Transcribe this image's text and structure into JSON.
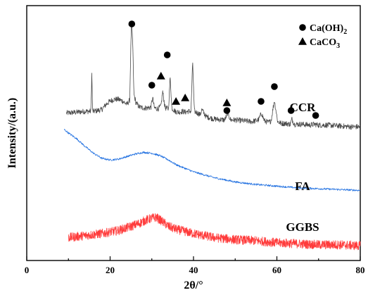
{
  "chart_data": {
    "type": "line",
    "xlabel": "2θ/°",
    "ylabel": "Intensity/(a.u.)",
    "xlim": [
      0,
      80
    ],
    "xticks": [
      0,
      20,
      40,
      60,
      80
    ],
    "yticks_shown": false,
    "legend": {
      "placement": "top-right",
      "entries": [
        {
          "marker": "circle",
          "label": "Ca(OH)",
          "sub": "2"
        },
        {
          "marker": "triangle",
          "label": "CaCO",
          "sub": "3"
        }
      ]
    },
    "series": [
      {
        "name": "CCR",
        "color": "#4a4a4a",
        "x": [
          9.5,
          12,
          14,
          15.4,
          15.6,
          15.8,
          16,
          18,
          19,
          20,
          21,
          22,
          23,
          24,
          24.7,
          25.1,
          25.4,
          25.7,
          26.2,
          27,
          28,
          29,
          29.8,
          30.2,
          30.6,
          31.5,
          32.2,
          32.6,
          33.2,
          34,
          34.4,
          34.8,
          35.6,
          36.5,
          37.4,
          38,
          38.6,
          39.4,
          39.8,
          40.2,
          41,
          41.6,
          42,
          43,
          45,
          47.5,
          48.2,
          48.9,
          50,
          52,
          54,
          55.6,
          56.3,
          57,
          58,
          58.6,
          59.4,
          60.2,
          61,
          62,
          63.2,
          63.6,
          64.2,
          66,
          68,
          69,
          70,
          72,
          75,
          78,
          80
        ],
        "y": [
          20,
          21,
          22,
          22,
          68,
          22,
          22,
          24,
          30,
          34,
          36,
          36,
          34,
          30,
          35,
          125,
          105,
          42,
          32,
          27,
          26,
          26,
          27,
          38,
          26,
          25,
          28,
          45,
          26,
          25,
          62,
          26,
          22,
          21,
          22,
          21,
          22,
          22,
          80,
          22,
          20,
          18,
          24,
          16,
          13,
          12,
          20,
          12,
          12,
          11,
          10,
          12,
          20,
          11,
          9,
          11,
          35,
          10,
          8,
          8,
          7,
          13,
          7,
          7,
          6,
          7,
          6,
          6,
          5,
          4,
          4
        ]
      },
      {
        "name": "FA",
        "color": "#1f6fe0",
        "x": [
          9,
          10,
          12,
          14,
          16,
          18,
          20,
          22,
          24,
          26,
          28,
          30,
          32,
          34,
          36,
          40,
          45,
          50,
          55,
          60,
          65,
          70,
          75,
          80
        ],
        "y": [
          90,
          86,
          79,
          70,
          62,
          56,
          54,
          55,
          58,
          61,
          63,
          62,
          59,
          54,
          48,
          40,
          33,
          28,
          25,
          23,
          21,
          20,
          19,
          18
        ]
      },
      {
        "name": "GGBS",
        "color": "#ff3b3b",
        "x": [
          10,
          14,
          18,
          22,
          25,
          27,
          28.5,
          30,
          31,
          32.5,
          34,
          36,
          38,
          40,
          45,
          50,
          55,
          60,
          65,
          70,
          75,
          80
        ],
        "y": [
          10,
          12,
          14,
          17,
          21,
          24,
          27,
          29,
          30,
          26,
          21,
          18,
          16,
          14,
          10,
          8,
          7,
          5,
          4,
          3,
          3,
          2
        ]
      }
    ],
    "markers": {
      "circles_Ca(OH)2": [
        25.2,
        30.0,
        33.7,
        48.0,
        56.2,
        59.4,
        63.4,
        69.3
      ],
      "triangles_CaCO3": [
        32.2,
        35.8,
        38.0,
        48.0
      ]
    }
  }
}
